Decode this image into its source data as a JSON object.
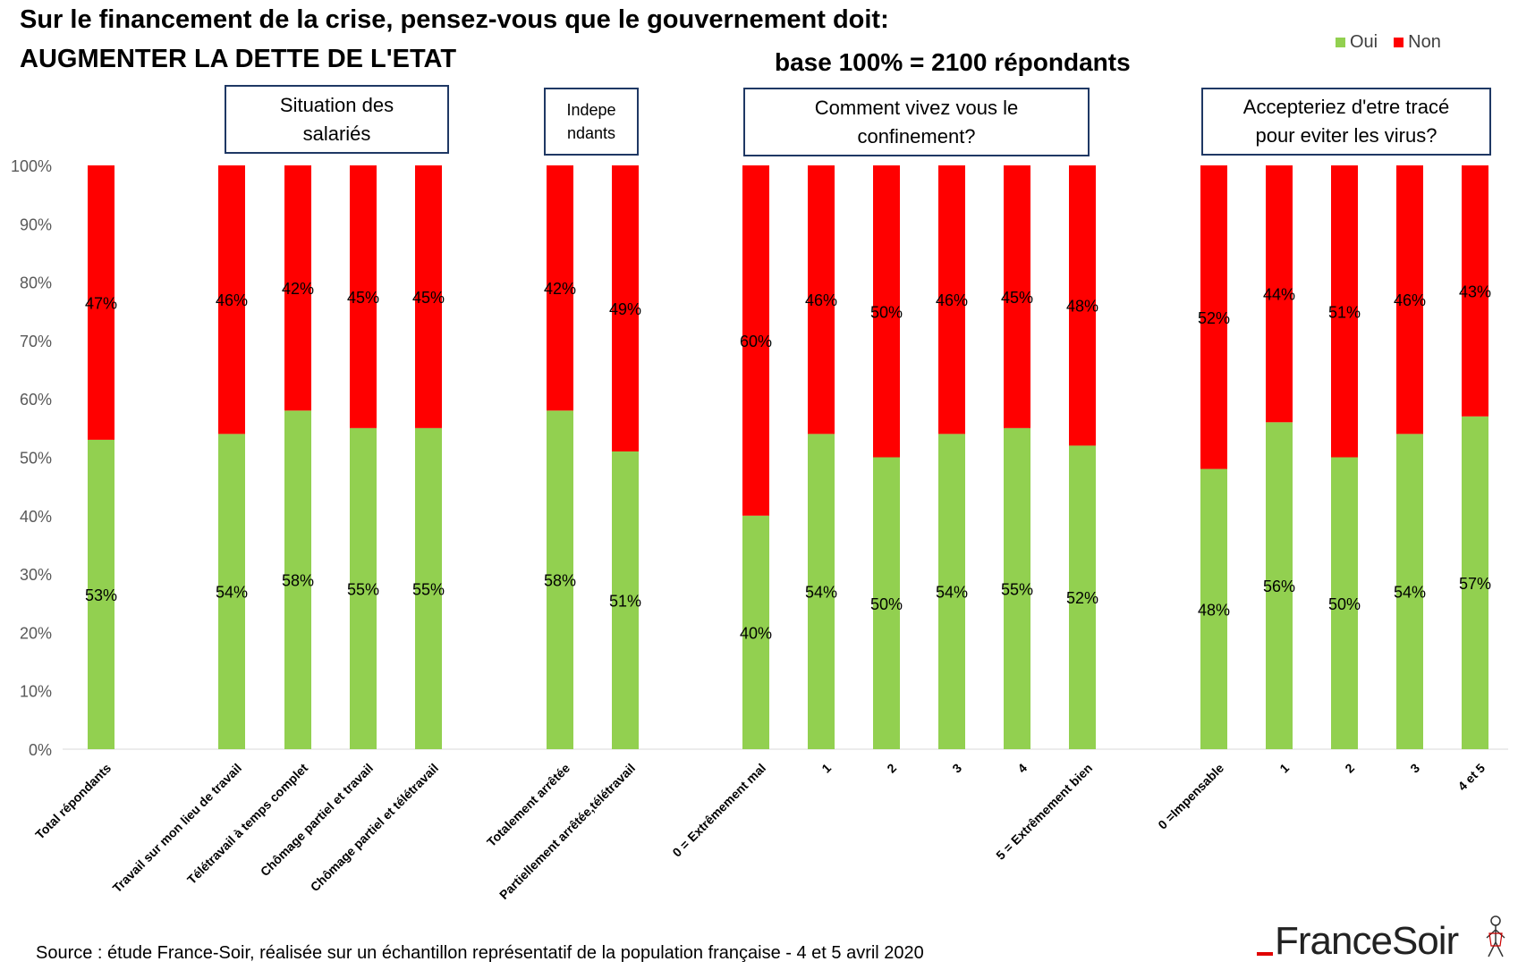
{
  "title_line1": "Sur le financement de la crise, pensez-vous que le gouvernement doit:",
  "title_line2": "AUGMENTER LA DETTE DE L'ETAT",
  "base_text": "base 100% = 2100 répondants",
  "legend": [
    {
      "label": "Oui",
      "color": "#92d050"
    },
    {
      "label": "Non",
      "color": "#ff0000"
    }
  ],
  "group_boxes": [
    {
      "text": "Situation des salariés"
    },
    {
      "text": "Indepe ndants"
    },
    {
      "text": "Comment vivez vous le confinement?"
    },
    {
      "text": "Accepteriez d'etre tracé pour eviter les virus?"
    }
  ],
  "source": "Source : étude France-Soir, réalisée sur un échantillon représentatif de la population française - 4 et 5 avril 2020",
  "logo_text": "FranceSoir",
  "chart_data": {
    "type": "bar",
    "stacked": true,
    "categories": [
      "Total répondants",
      "Travail sur mon lieu de travail",
      "Télétravail à temps complet",
      "Chômage partiel et travail",
      "Chômage partiel et télétravail",
      "Totalement arrêtée",
      "Partiellement arrêtée,télétravail",
      "0 = Extrêmement mal",
      "1",
      "2",
      "3",
      "4",
      "5 = Extrêmement bien",
      "0 =Impensable",
      "1",
      "2",
      "3",
      "4 et 5"
    ],
    "series": [
      {
        "name": "Oui",
        "color": "#92d050",
        "values": [
          53,
          54,
          58,
          55,
          55,
          58,
          51,
          40,
          54,
          50,
          54,
          55,
          52,
          48,
          56,
          50,
          54,
          57
        ]
      },
      {
        "name": "Non",
        "color": "#ff0000",
        "values": [
          47,
          46,
          42,
          45,
          45,
          42,
          49,
          60,
          46,
          50,
          46,
          45,
          48,
          52,
          44,
          51,
          46,
          43
        ]
      }
    ],
    "y_ticks": [
      "0%",
      "10%",
      "20%",
      "30%",
      "40%",
      "50%",
      "60%",
      "70%",
      "80%",
      "90%",
      "100%"
    ],
    "ylim": [
      0,
      100
    ],
    "legend_position": "top-right",
    "grid": false
  }
}
